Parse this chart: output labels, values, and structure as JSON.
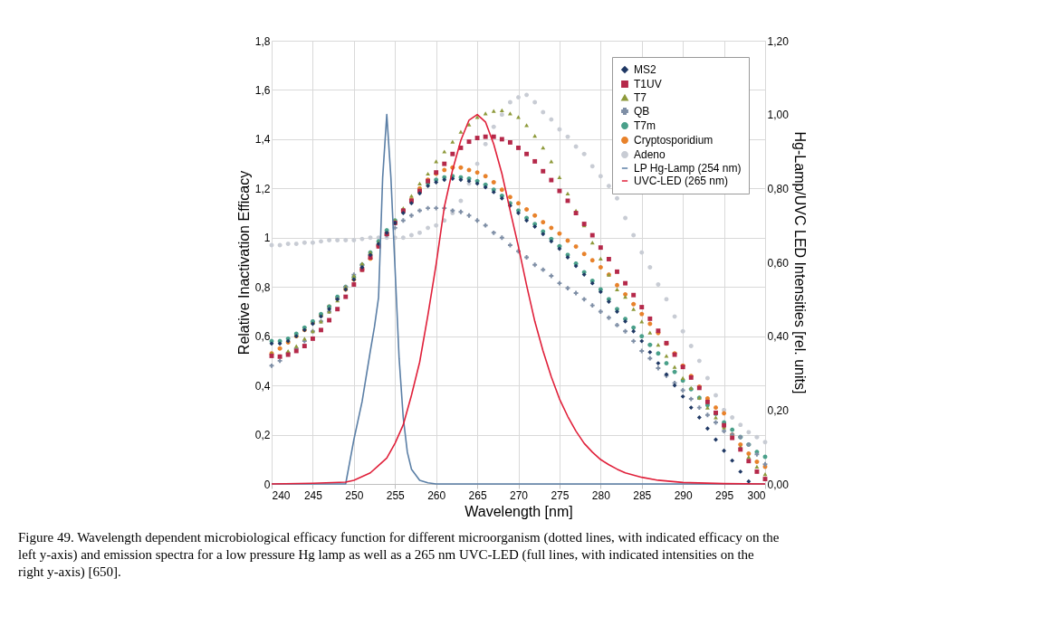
{
  "chart_data": {
    "type": "scatter",
    "xlabel": "Wavelength [nm]",
    "ylabel": "Relative Inactivation Efficacy",
    "y2label": "Hg-Lamp/UVC LED Intensities [rel. units]",
    "x": [
      240,
      241,
      242,
      243,
      244,
      245,
      246,
      247,
      248,
      249,
      250,
      251,
      252,
      253,
      254,
      255,
      256,
      257,
      258,
      259,
      260,
      261,
      262,
      263,
      264,
      265,
      266,
      267,
      268,
      269,
      270,
      271,
      272,
      273,
      274,
      275,
      276,
      277,
      278,
      279,
      280,
      281,
      282,
      283,
      284,
      285,
      286,
      287,
      288,
      289,
      290,
      291,
      292,
      293,
      294,
      295,
      296,
      297,
      298,
      299,
      300
    ],
    "xlim": [
      240,
      300
    ],
    "xticks": [
      240,
      245,
      250,
      255,
      260,
      265,
      270,
      275,
      280,
      285,
      290,
      295,
      300
    ],
    "ylim": [
      0,
      1.8
    ],
    "yticks": [
      0,
      {
        "value": 0.2,
        "label": "0,2"
      },
      {
        "value": 0.4,
        "label": "0,4"
      },
      {
        "value": 0.6,
        "label": "0,6"
      },
      {
        "value": 0.8,
        "label": "0,8"
      },
      1,
      {
        "value": 1.2,
        "label": "1,2"
      },
      {
        "value": 1.4,
        "label": "1,4"
      },
      {
        "value": 1.6,
        "label": "1,6"
      },
      {
        "value": 1.8,
        "label": "1,8"
      }
    ],
    "y2lim": [
      0,
      1.2
    ],
    "y2ticks": [
      {
        "value": 0,
        "label": "0,00"
      },
      {
        "value": 0.2,
        "label": "0,20"
      },
      {
        "value": 0.4,
        "label": "0,40"
      },
      {
        "value": 0.6,
        "label": "0,60"
      },
      {
        "value": 0.8,
        "label": "0,80"
      },
      {
        "value": 1.0,
        "label": "1,00"
      },
      {
        "value": 1.2,
        "label": "1,20"
      }
    ],
    "grid": true,
    "legend": "top right",
    "series": [
      {
        "name": "MS2",
        "color": "#1f3864",
        "marker": "diamond",
        "values": [
          0.57,
          0.57,
          0.58,
          0.6,
          0.625,
          0.65,
          0.68,
          0.71,
          0.75,
          0.79,
          0.83,
          0.88,
          0.93,
          0.975,
          1.02,
          1.06,
          1.1,
          1.14,
          1.18,
          1.21,
          1.225,
          1.235,
          1.24,
          1.235,
          1.23,
          1.22,
          1.205,
          1.185,
          1.16,
          1.13,
          1.1,
          1.07,
          1.045,
          1.015,
          0.985,
          0.955,
          0.92,
          0.885,
          0.85,
          0.815,
          0.78,
          0.74,
          0.7,
          0.66,
          0.62,
          0.58,
          0.535,
          0.49,
          0.445,
          0.4,
          0.355,
          0.31,
          0.27,
          0.225,
          0.18,
          0.135,
          0.095,
          0.05,
          0.01,
          null,
          null
        ]
      },
      {
        "name": "T1UV",
        "color": "#b5294a",
        "marker": "square",
        "values": [
          0.52,
          0.517,
          0.525,
          0.54,
          0.56,
          0.59,
          0.625,
          0.665,
          0.71,
          0.76,
          0.81,
          0.87,
          0.92,
          0.965,
          1.015,
          1.06,
          1.11,
          1.15,
          1.19,
          1.23,
          1.265,
          1.3,
          1.34,
          1.365,
          1.39,
          1.405,
          1.41,
          1.41,
          1.4,
          1.387,
          1.365,
          1.34,
          1.31,
          1.27,
          1.234,
          1.19,
          1.15,
          1.1,
          1.056,
          1.01,
          0.96,
          0.913,
          0.862,
          0.815,
          0.767,
          0.718,
          0.671,
          0.622,
          0.572,
          0.525,
          0.475,
          0.432,
          0.39,
          0.333,
          0.289,
          0.238,
          0.187,
          0.14,
          0.093,
          0.05,
          0.02
        ]
      },
      {
        "name": "T7",
        "color": "#8e9a3b",
        "marker": "triangle",
        "values": [
          0.53,
          0.52,
          0.54,
          0.56,
          0.59,
          0.62,
          0.66,
          0.7,
          0.745,
          0.8,
          0.845,
          0.895,
          0.94,
          0.98,
          1.02,
          1.07,
          1.12,
          1.17,
          1.22,
          1.26,
          1.31,
          1.35,
          1.39,
          1.43,
          1.46,
          1.49,
          1.505,
          1.515,
          1.518,
          1.505,
          1.49,
          1.457,
          1.414,
          1.366,
          1.31,
          1.246,
          1.18,
          1.11,
          1.05,
          0.98,
          0.915,
          0.85,
          0.79,
          0.76,
          0.71,
          0.66,
          0.615,
          0.565,
          0.52,
          0.475,
          0.43,
          0.39,
          0.35,
          0.31,
          0.27,
          0.23,
          0.19,
          0.15,
          0.11,
          0.07,
          0.04
        ]
      },
      {
        "name": "QB",
        "color": "#7f8fa6",
        "marker": "cross",
        "values": [
          0.48,
          0.5,
          0.53,
          0.55,
          0.58,
          0.62,
          0.66,
          0.7,
          0.75,
          0.8,
          0.85,
          0.89,
          0.93,
          0.97,
          1.01,
          1.04,
          1.07,
          1.09,
          1.11,
          1.12,
          1.12,
          1.12,
          1.11,
          1.105,
          1.09,
          1.07,
          1.05,
          1.02,
          1.0,
          0.97,
          0.945,
          0.92,
          0.89,
          0.87,
          0.845,
          0.815,
          0.795,
          0.775,
          0.75,
          0.725,
          0.7,
          0.675,
          0.645,
          0.62,
          0.58,
          0.54,
          0.51,
          0.47,
          0.44,
          0.41,
          0.38,
          0.345,
          0.31,
          0.28,
          0.25,
          0.215,
          0.2,
          0.19,
          0.16,
          0.12,
          0.08
        ]
      },
      {
        "name": "T7m",
        "color": "#4aa08a",
        "marker": "circle",
        "values": [
          0.58,
          0.58,
          0.59,
          0.61,
          0.635,
          0.66,
          0.69,
          0.72,
          0.76,
          0.8,
          0.84,
          0.89,
          0.94,
          0.985,
          1.03,
          1.07,
          1.11,
          1.15,
          1.19,
          1.22,
          1.235,
          1.245,
          1.25,
          1.245,
          1.24,
          1.23,
          1.215,
          1.195,
          1.17,
          1.14,
          1.11,
          1.08,
          1.055,
          1.025,
          0.995,
          0.965,
          0.93,
          0.895,
          0.86,
          0.825,
          0.79,
          0.75,
          0.71,
          0.67,
          0.635,
          0.6,
          0.565,
          0.53,
          0.49,
          0.455,
          0.42,
          0.385,
          0.35,
          0.32,
          0.285,
          0.25,
          0.22,
          0.19,
          0.16,
          0.13,
          0.11
        ]
      },
      {
        "name": "Cryptosporidium",
        "color": "#e8822b",
        "marker": "circle",
        "values": [
          0.53,
          0.55,
          0.575,
          0.6,
          0.625,
          0.655,
          0.685,
          0.72,
          0.755,
          0.79,
          0.83,
          0.87,
          0.915,
          0.965,
          1.015,
          1.06,
          1.11,
          1.155,
          1.2,
          1.235,
          1.26,
          1.275,
          1.285,
          1.285,
          1.275,
          1.265,
          1.25,
          1.225,
          1.195,
          1.165,
          1.14,
          1.115,
          1.09,
          1.063,
          1.04,
          1.017,
          0.988,
          0.964,
          0.934,
          0.908,
          0.88,
          0.85,
          0.807,
          0.77,
          0.73,
          0.69,
          0.65,
          0.613,
          0.57,
          0.53,
          0.48,
          0.438,
          0.395,
          0.347,
          0.31,
          0.287,
          0.2,
          0.16,
          0.123,
          0.09,
          0.07
        ]
      },
      {
        "name": "Adeno",
        "color": "#c8ccd4",
        "marker": "circle",
        "values": [
          0.97,
          0.97,
          0.975,
          0.975,
          0.98,
          0.98,
          0.985,
          0.99,
          0.99,
          0.99,
          0.99,
          0.995,
          1.0,
          1.0,
          1.0,
          1.0,
          1.0,
          1.01,
          1.02,
          1.04,
          1.05,
          1.07,
          1.1,
          1.15,
          1.22,
          1.3,
          1.38,
          1.45,
          1.5,
          1.55,
          1.57,
          1.58,
          1.55,
          1.51,
          1.48,
          1.44,
          1.41,
          1.37,
          1.34,
          1.29,
          1.25,
          1.21,
          1.16,
          1.08,
          1.01,
          0.94,
          0.88,
          0.81,
          0.75,
          0.68,
          0.62,
          0.56,
          0.5,
          0.43,
          0.36,
          0.3,
          0.27,
          0.24,
          0.21,
          0.19,
          0.17
        ]
      },
      {
        "name": "LP Hg-Lamp (254 nm)",
        "type": "line",
        "axis": "y2",
        "color": "#5b7fa6",
        "line_style": "solid",
        "x": [
          240,
          249,
          250,
          251,
          252,
          252.5,
          253,
          253.5,
          254,
          254.5,
          255,
          255.5,
          256,
          256.5,
          257,
          258,
          259,
          260,
          300
        ],
        "values": [
          0,
          0,
          0.12,
          0.223,
          0.36,
          0.425,
          0.505,
          0.83,
          1.0,
          0.83,
          0.586,
          0.34,
          0.18,
          0.086,
          0.04,
          0.01,
          0.003,
          0,
          0
        ]
      },
      {
        "name": "UVC-LED (265 nm)",
        "type": "line",
        "axis": "y2",
        "color": "#e0203a",
        "line_style": "solid",
        "x": [
          240,
          245,
          249,
          250,
          252,
          253,
          254,
          255,
          256,
          257,
          258,
          259,
          260,
          261,
          262,
          263,
          264,
          265,
          266,
          267,
          268,
          269,
          270,
          271,
          272,
          273,
          274,
          275,
          276,
          277,
          278,
          279,
          280,
          281,
          282,
          283,
          285,
          287,
          290,
          295,
          300
        ],
        "values": [
          0,
          0.002,
          0.005,
          0.01,
          0.03,
          0.05,
          0.07,
          0.11,
          0.16,
          0.24,
          0.33,
          0.457,
          0.595,
          0.75,
          0.85,
          0.93,
          0.985,
          1.0,
          0.98,
          0.92,
          0.84,
          0.74,
          0.643,
          0.538,
          0.44,
          0.36,
          0.29,
          0.23,
          0.183,
          0.143,
          0.11,
          0.086,
          0.066,
          0.052,
          0.04,
          0.03,
          0.018,
          0.01,
          0.004,
          0.001,
          0
        ]
      }
    ],
    "annotations": [
      "Figure 49. Wavelength dependent microbiological efficacy function for different microorganism (dotted lines, with indicated efficacy on the left y-axis) and emission spectra for a low pressure Hg lamp as well as a 265 nm UVC-LED (full lines, with indicated intensities on the right y-axis) [650]."
    ]
  }
}
